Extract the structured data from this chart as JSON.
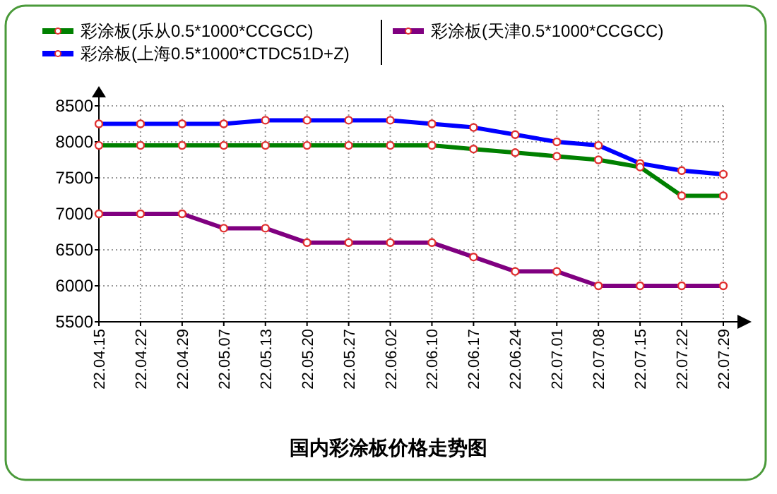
{
  "chart_data": {
    "type": "line",
    "title": "国内彩涂板价格走势图",
    "categories": [
      "22.04.15",
      "22.04.22",
      "22.04.29",
      "22.05.07",
      "22.05.13",
      "22.05.20",
      "22.05.27",
      "22.06.02",
      "22.06.10",
      "22.06.17",
      "22.06.24",
      "22.07.01",
      "22.07.08",
      "22.07.15",
      "22.07.22",
      "22.07.29"
    ],
    "series": [
      {
        "name": "彩涂板(乐从0.5*1000*CCGCC)",
        "color": "#008000",
        "values": [
          7950,
          7950,
          7950,
          7950,
          7950,
          7950,
          7950,
          7950,
          7950,
          7900,
          7850,
          7800,
          7750,
          7650,
          7250,
          7250
        ]
      },
      {
        "name": "彩涂板(上海0.5*1000*CTDC51D+Z)",
        "color": "#0000ff",
        "values": [
          8250,
          8250,
          8250,
          8250,
          8300,
          8300,
          8300,
          8300,
          8250,
          8200,
          8100,
          8000,
          7950,
          7700,
          7600,
          7550
        ]
      },
      {
        "name": "彩涂板(天津0.5*1000*CCGCC)",
        "color": "#800080",
        "values": [
          7000,
          7000,
          7000,
          6800,
          6800,
          6600,
          6600,
          6600,
          6600,
          6400,
          6200,
          6200,
          6000,
          6000,
          6000,
          6000
        ]
      }
    ],
    "ylim": [
      5500,
      8500
    ],
    "yticks": [
      5500,
      6000,
      6500,
      7000,
      7500,
      8000,
      8500
    ],
    "grid": true,
    "legend": "top",
    "marker": "circle",
    "line_style": "solid"
  }
}
